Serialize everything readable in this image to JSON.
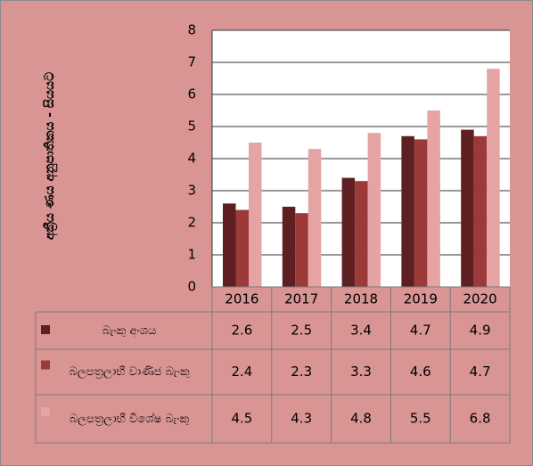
{
  "chart_data": {
    "type": "bar",
    "y_label": "අක්‍රීය ණය අනුපාතිකය - සියයට",
    "categories": [
      "2016",
      "2017",
      "2018",
      "2019",
      "2020"
    ],
    "series": [
      {
        "name": "බැංකු අංශය",
        "color": "#5e1f22",
        "values": [
          2.6,
          2.5,
          3.4,
          4.7,
          4.9
        ]
      },
      {
        "name": "බලපත්‍රලාභී වාණිජ බැංකු",
        "color": "#9c3a3a",
        "values": [
          2.4,
          2.3,
          3.3,
          4.6,
          4.7
        ]
      },
      {
        "name": "බලපත්‍රලාභී විශේෂ බැංකු",
        "color": "#e6a3a3",
        "values": [
          4.5,
          4.3,
          4.8,
          5.5,
          6.8
        ]
      }
    ],
    "ylim": [
      0,
      8
    ],
    "yticks": [
      0,
      1,
      2,
      3,
      4,
      5,
      6,
      7,
      8
    ],
    "grid": true,
    "data_table": true
  }
}
